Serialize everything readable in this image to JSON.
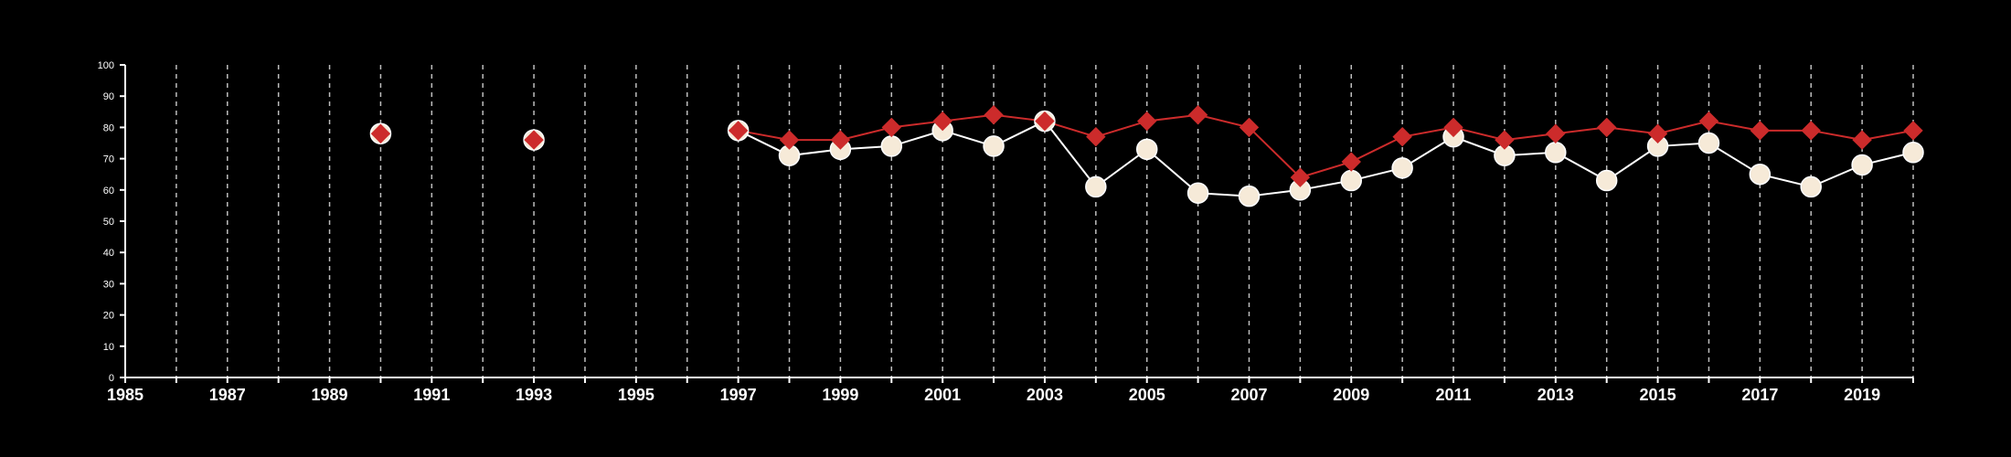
{
  "chart_data": {
    "type": "line",
    "title": "",
    "xlabel": "",
    "ylabel": "",
    "xlim": [
      1985,
      2020
    ],
    "ylim": [
      0,
      100
    ],
    "x_ticks": [
      1985,
      1987,
      1989,
      1991,
      1993,
      1995,
      1997,
      1999,
      2001,
      2003,
      2005,
      2007,
      2009,
      2011,
      2013,
      2015,
      2017,
      2019
    ],
    "y_ticks": [
      0,
      10,
      20,
      30,
      40,
      50,
      60,
      70,
      80,
      90,
      100
    ],
    "grid": "vertical dashed lines at every year",
    "legend": "none",
    "x_tick_labels": [
      "1985",
      "1987",
      "1989",
      "1991",
      "1993",
      "1995",
      "1997",
      "1999",
      "2001",
      "2003",
      "2005",
      "2007",
      "2009",
      "2011",
      "2013",
      "2015",
      "2017",
      "2019"
    ],
    "y_tick_labels": [
      "0",
      "10",
      "20",
      "30",
      "40",
      "50",
      "60",
      "70",
      "80",
      "90",
      "100"
    ],
    "series": [
      {
        "marker": "circle",
        "color": "#f6ead8",
        "line_color": "#ffffff",
        "points": [
          [
            1990,
            78
          ],
          [
            1993,
            76
          ],
          [
            1997,
            79
          ],
          [
            1998,
            71
          ],
          [
            1999,
            73
          ],
          [
            2000,
            74
          ],
          [
            2001,
            79
          ],
          [
            2002,
            74
          ],
          [
            2003,
            82
          ],
          [
            2004,
            61
          ],
          [
            2005,
            73
          ],
          [
            2006,
            59
          ],
          [
            2007,
            58
          ],
          [
            2008,
            60
          ],
          [
            2009,
            63
          ],
          [
            2010,
            67
          ],
          [
            2011,
            77
          ],
          [
            2012,
            71
          ],
          [
            2013,
            72
          ],
          [
            2014,
            63
          ],
          [
            2015,
            74
          ],
          [
            2016,
            75
          ],
          [
            2017,
            65
          ],
          [
            2018,
            61
          ],
          [
            2019,
            68
          ],
          [
            2020,
            72
          ]
        ]
      },
      {
        "marker": "diamond",
        "color": "#cc2b2b",
        "line_color": "#cc2b2b",
        "points": [
          [
            1990,
            78
          ],
          [
            1993,
            76
          ],
          [
            1997,
            79
          ],
          [
            1998,
            76
          ],
          [
            1999,
            76
          ],
          [
            2000,
            80
          ],
          [
            2001,
            82
          ],
          [
            2002,
            84
          ],
          [
            2003,
            82
          ],
          [
            2004,
            77
          ],
          [
            2005,
            82
          ],
          [
            2006,
            84
          ],
          [
            2007,
            80
          ],
          [
            2008,
            64
          ],
          [
            2009,
            69
          ],
          [
            2010,
            77
          ],
          [
            2011,
            80
          ],
          [
            2012,
            76
          ],
          [
            2013,
            78
          ],
          [
            2014,
            80
          ],
          [
            2015,
            78
          ],
          [
            2016,
            82
          ],
          [
            2017,
            79
          ],
          [
            2018,
            79
          ],
          [
            2019,
            76
          ],
          [
            2020,
            79
          ]
        ]
      }
    ]
  }
}
